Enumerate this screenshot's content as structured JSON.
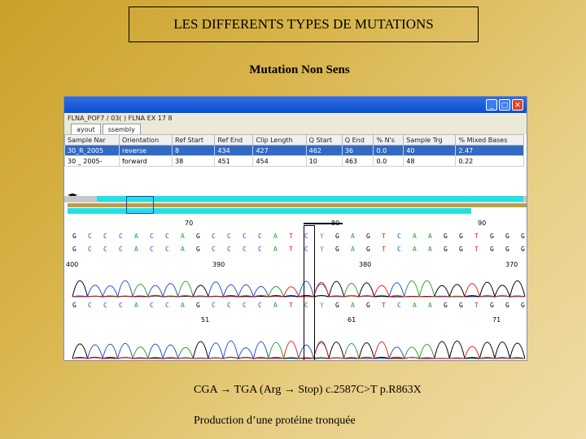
{
  "slide": {
    "title": "LES DIFFERENTS TYPES DE MUTATIONS",
    "subtitle": "Mutation Non Sens",
    "caption_line1": "CGA → TGA  (Arg → Stop)    c.2587C>T   p.R863X",
    "caption_line2": "Production d’une protéine tronquée"
  },
  "window": {
    "controls": [
      "_",
      "□",
      "✕"
    ],
    "path": "FLNA_POF7  /  03( ) FLNA EX 17  8",
    "tabs": [
      "ayout",
      "ssembly"
    ],
    "columns": [
      "Sample Nar",
      "Orientation",
      "Ref Start",
      "Ref End",
      "Clip Length",
      "Q Start",
      "Q End",
      "% N's",
      "Sample Trg",
      "% Mixed Bases"
    ],
    "rows": [
      [
        "30_R_2005",
        "reverse",
        "8",
        "434",
        "427",
        "462",
        "36",
        "0.0",
        "40",
        "2.47"
      ],
      [
        "30 _ 2005-",
        "forward",
        "38",
        "451",
        "454",
        "10",
        "463",
        "0.0",
        "48",
        "0.22"
      ]
    ],
    "nav": "◄►",
    "ref_positions": [
      "70",
      "80",
      "90"
    ],
    "top_positions": [
      "400",
      "390",
      "380",
      "370"
    ],
    "bottom_positions": [
      "51",
      "61",
      "71"
    ],
    "ref_sequence": [
      "G",
      "C",
      "C",
      "C",
      "A",
      "C",
      "C",
      "A",
      "G",
      "C",
      "C",
      "C",
      "C",
      "A",
      "T",
      "C",
      "Y",
      "G",
      "A",
      "G",
      "T",
      "C",
      "A",
      "A",
      "G",
      "G",
      "T",
      "G",
      "G",
      "G"
    ],
    "top_sequence": [
      "G",
      "C",
      "C",
      "C",
      "A",
      "C",
      "C",
      "A",
      "G",
      "C",
      "C",
      "C",
      "C",
      "A",
      "T",
      "C",
      "Y",
      "G",
      "A",
      "G",
      "T",
      "C",
      "A",
      "A",
      "G",
      "G",
      "T",
      "G",
      "G",
      "G"
    ],
    "bottom_sequence": [
      "G",
      "C",
      "C",
      "C",
      "A",
      "C",
      "C",
      "A",
      "G",
      "C",
      "C",
      "C",
      "C",
      "A",
      "T",
      "C",
      "Y",
      "G",
      "A",
      "G",
      "T",
      "C",
      "A",
      "A",
      "G",
      "G",
      "T",
      "G",
      "G",
      "G"
    ]
  },
  "colors": {
    "A": "#2aa02a",
    "C": "#2050d0",
    "G": "#000000",
    "T": "#e02020",
    "Y": "#808080"
  }
}
